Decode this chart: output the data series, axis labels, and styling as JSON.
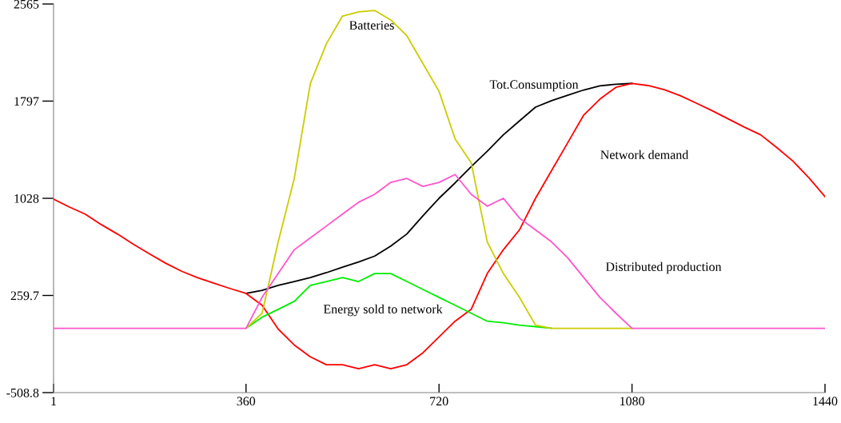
{
  "chart_data": {
    "type": "line",
    "x": [
      1,
      30,
      60,
      90,
      120,
      150,
      180,
      210,
      240,
      270,
      300,
      330,
      360,
      390,
      420,
      450,
      480,
      510,
      540,
      570,
      600,
      630,
      660,
      690,
      720,
      750,
      780,
      810,
      840,
      870,
      900,
      930,
      960,
      990,
      1020,
      1050,
      1080,
      1110,
      1140,
      1170,
      1200,
      1230,
      1260,
      1290,
      1320,
      1350,
      1380,
      1410,
      1440
    ],
    "series": [
      {
        "name": "Tot.Consumption",
        "color": "#000000",
        "values": [
          null,
          null,
          null,
          null,
          null,
          null,
          null,
          null,
          null,
          null,
          null,
          null,
          276,
          300,
          339,
          370,
          401,
          440,
          483,
          525,
          571,
          650,
          746,
          890,
          1028,
          1150,
          1279,
          1400,
          1530,
          1640,
          1749,
          1800,
          1843,
          1885,
          1918,
          1930,
          1937,
          null,
          null,
          null,
          null,
          null,
          null,
          null,
          null,
          null,
          null,
          null,
          null
        ]
      },
      {
        "name": "Network demand",
        "color": "#ff0000",
        "values": [
          1022,
          960,
          903,
          820,
          746,
          665,
          589,
          515,
          451,
          400,
          357,
          315,
          276,
          182,
          -6,
          -132,
          -226,
          -288,
          -288,
          -320,
          -288,
          -320,
          -288,
          -194,
          -69,
          56,
          150,
          433,
          621,
          778,
          1028,
          1248,
          1467,
          1687,
          1812,
          1906,
          1937,
          1920,
          1887,
          1840,
          1781,
          1720,
          1655,
          1590,
          1530,
          1430,
          1323,
          1190,
          1041
        ]
      },
      {
        "name": "Batteries",
        "color": "#cccc00",
        "values": [
          null,
          null,
          null,
          null,
          null,
          null,
          null,
          null,
          null,
          null,
          null,
          null,
          0,
          119,
          683,
          1185,
          1937,
          2251,
          2470,
          2502,
          2514,
          2439,
          2314,
          2094,
          1875,
          1498,
          1310,
          683,
          433,
          245,
          25,
          0,
          0,
          0,
          0,
          0,
          0,
          null,
          null,
          null,
          null,
          null,
          null,
          null,
          null,
          null,
          null,
          null,
          null
        ]
      },
      {
        "name": "Distributed production",
        "color": "#ff55cc",
        "values": [
          0,
          0,
          0,
          0,
          0,
          0,
          0,
          0,
          0,
          0,
          0,
          0,
          0,
          245,
          433,
          621,
          715,
          809,
          903,
          997,
          1060,
          1154,
          1185,
          1122,
          1154,
          1216,
          1060,
          966,
          1028,
          872,
          778,
          683,
          558,
          401,
          245,
          119,
          0,
          0,
          0,
          0,
          0,
          0,
          0,
          0,
          0,
          0,
          0,
          0,
          0
        ]
      },
      {
        "name": "Energy sold to network",
        "color": "#00ee00",
        "values": [
          null,
          null,
          null,
          null,
          null,
          null,
          null,
          null,
          null,
          null,
          null,
          null,
          0,
          88,
          150,
          213,
          339,
          370,
          401,
          370,
          433,
          433,
          370,
          307,
          245,
          182,
          119,
          56,
          44,
          25,
          13,
          0,
          null,
          null,
          null,
          null,
          null,
          null,
          null,
          null,
          null,
          null,
          null,
          null,
          null,
          null,
          null,
          null,
          null
        ]
      }
    ],
    "xlim": [
      1,
      1440
    ],
    "xticks": [
      1,
      360,
      720,
      1080,
      1440
    ],
    "ylim": [
      -508.8,
      2565
    ],
    "yticks": [
      -508.8,
      259.7,
      1028,
      1797,
      2565
    ],
    "grid": false,
    "legend": false,
    "marker": "none",
    "line_style": "solid"
  }
}
